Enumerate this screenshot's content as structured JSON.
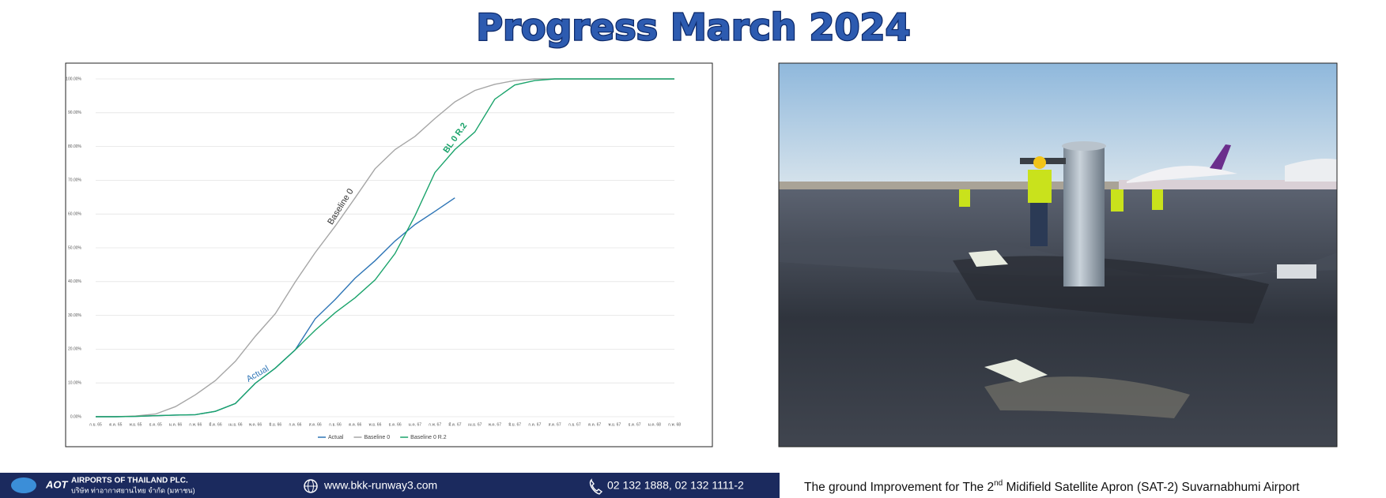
{
  "title": "Progress March 2024",
  "chart_data": {
    "type": "line",
    "categories": [
      "ก.ย. 65",
      "ต.ค. 65",
      "พ.ย. 65",
      "ธ.ค. 65",
      "ม.ค. 66",
      "ก.พ. 66",
      "มี.ค. 66",
      "เม.ย. 66",
      "พ.ค. 66",
      "มิ.ย. 66",
      "ก.ค. 66",
      "ส.ค. 66",
      "ก.ย. 66",
      "ต.ค. 66",
      "พ.ย. 66",
      "ธ.ค. 66",
      "ม.ค. 67",
      "ก.พ. 67",
      "มี.ค. 67",
      "เม.ย. 67",
      "พ.ค. 67",
      "มิ.ย. 67",
      "ก.ค. 67",
      "ส.ค. 67",
      "ก.ย. 67",
      "ต.ค. 67",
      "พ.ย. 67",
      "ธ.ค. 67",
      "ม.ค. 68",
      "ก.พ. 68"
    ],
    "series": [
      {
        "name": "Actual",
        "color": "#2e75b6",
        "values": [
          0,
          0,
          0.1,
          0.3,
          0.5,
          0.6,
          1.6,
          3.9,
          9.9,
          14.4,
          19.8,
          29,
          34.7,
          41,
          46.2,
          52,
          56.9,
          60.8,
          64.8,
          null,
          null,
          null,
          null,
          null,
          null,
          null,
          null,
          null,
          null,
          null
        ]
      },
      {
        "name": "Baseline 0",
        "color": "#a6a6a6",
        "values": [
          0,
          0,
          0.2,
          0.8,
          3,
          6.5,
          10.7,
          16.4,
          23.8,
          30.5,
          39.9,
          48.6,
          56.4,
          64.8,
          73.4,
          79.1,
          83,
          88.3,
          93.2,
          96.6,
          98.4,
          99.5,
          100,
          100,
          100,
          100,
          100,
          100,
          100,
          100
        ]
      },
      {
        "name": "Baseline 0 R.2",
        "color": "#1aa36b",
        "values": [
          0,
          0,
          0.1,
          0.3,
          0.5,
          0.6,
          1.6,
          3.9,
          9.9,
          14.4,
          19.8,
          25.6,
          30.8,
          35.2,
          40.5,
          48.3,
          59.5,
          72.3,
          79.1,
          84.3,
          94,
          98.2,
          99.5,
          100,
          100,
          100,
          100,
          100,
          100,
          100
        ]
      }
    ],
    "annotations": [
      "Baseline 0",
      "BL 0 R.2",
      "Actual"
    ],
    "ylim": [
      0,
      100
    ],
    "yticks": [
      {
        "value": 0,
        "label": "0.00%"
      },
      {
        "value": 10,
        "label": "10.00%"
      },
      {
        "value": 20,
        "label": "20.00%"
      },
      {
        "value": 30,
        "label": "30.00%"
      },
      {
        "value": 40,
        "label": "40.00%"
      },
      {
        "value": 50,
        "label": "50.00%"
      },
      {
        "value": 60,
        "label": "60.00%"
      },
      {
        "value": 70,
        "label": "70.00%"
      },
      {
        "value": 80,
        "label": "80.00%"
      },
      {
        "value": 90,
        "label": "90.00%"
      },
      {
        "value": 100,
        "label": "100.00%"
      }
    ],
    "grid": true,
    "legend": "bottom"
  },
  "footer": {
    "logo": "AOT",
    "company": "AIRPORTS OF THAILAND PLC.",
    "company_thai": "บริษัท ท่าอากาศยานไทย จำกัด (มหาชน)",
    "website": "www.bkk-runway3.com",
    "phone": "02 132 1888, 02 132 1111-2",
    "caption_start": "The ground Improvement for The 2",
    "caption_sup": "nd",
    "caption_end": " Midifield Satellite Apron (SAT-2) Suvarnabhumi Airport"
  }
}
